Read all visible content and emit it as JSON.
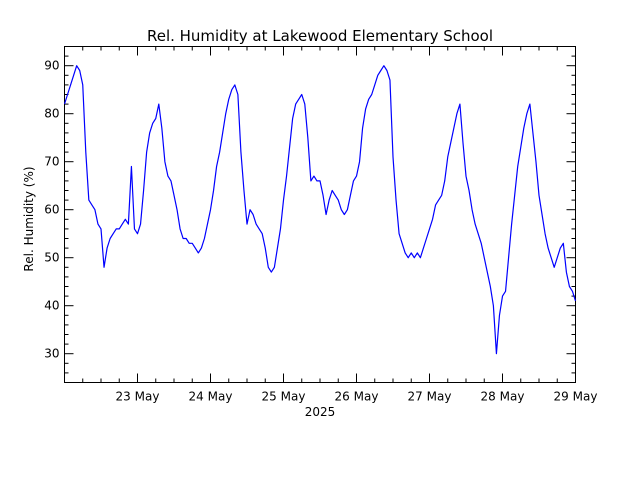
{
  "chart_data": {
    "type": "line",
    "title": "Rel. Humidity at Lakewood Elementary School",
    "xlabel": "2025",
    "ylabel": "Rel. Humidity (%)",
    "grid": false,
    "legend": "none",
    "xlim": [
      "2025-05-22T00:00",
      "2025-05-29T00:00"
    ],
    "ylim": [
      24,
      94
    ],
    "x_ticks": [
      "2025-05-23",
      "2025-05-24",
      "2025-05-25",
      "2025-05-26",
      "2025-05-27",
      "2025-05-28",
      "2025-05-29"
    ],
    "x_tick_labels": [
      "23 May",
      "24 May",
      "25 May",
      "26 May",
      "27 May",
      "28 May",
      "29 May"
    ],
    "y_ticks": [
      30,
      40,
      50,
      60,
      70,
      80,
      90
    ],
    "series": [
      {
        "color": "#0000ff",
        "x": [
          "2025-05-22T00:00",
          "2025-05-22T01:00",
          "2025-05-22T02:00",
          "2025-05-22T03:00",
          "2025-05-22T04:00",
          "2025-05-22T05:00",
          "2025-05-22T06:00",
          "2025-05-22T07:00",
          "2025-05-22T08:00",
          "2025-05-22T09:00",
          "2025-05-22T10:00",
          "2025-05-22T11:00",
          "2025-05-22T12:00",
          "2025-05-22T13:00",
          "2025-05-22T14:00",
          "2025-05-22T15:00",
          "2025-05-22T16:00",
          "2025-05-22T17:00",
          "2025-05-22T18:00",
          "2025-05-22T19:00",
          "2025-05-22T20:00",
          "2025-05-22T21:00",
          "2025-05-22T22:00",
          "2025-05-22T23:00",
          "2025-05-23T00:00",
          "2025-05-23T01:00",
          "2025-05-23T02:00",
          "2025-05-23T03:00",
          "2025-05-23T04:00",
          "2025-05-23T05:00",
          "2025-05-23T06:00",
          "2025-05-23T07:00",
          "2025-05-23T08:00",
          "2025-05-23T09:00",
          "2025-05-23T10:00",
          "2025-05-23T11:00",
          "2025-05-23T12:00",
          "2025-05-23T13:00",
          "2025-05-23T14:00",
          "2025-05-23T15:00",
          "2025-05-23T16:00",
          "2025-05-23T17:00",
          "2025-05-23T18:00",
          "2025-05-23T19:00",
          "2025-05-23T20:00",
          "2025-05-23T21:00",
          "2025-05-23T22:00",
          "2025-05-23T23:00",
          "2025-05-24T00:00",
          "2025-05-24T01:00",
          "2025-05-24T02:00",
          "2025-05-24T03:00",
          "2025-05-24T04:00",
          "2025-05-24T05:00",
          "2025-05-24T06:00",
          "2025-05-24T07:00",
          "2025-05-24T08:00",
          "2025-05-24T09:00",
          "2025-05-24T10:00",
          "2025-05-24T11:00",
          "2025-05-24T12:00",
          "2025-05-24T13:00",
          "2025-05-24T14:00",
          "2025-05-24T15:00",
          "2025-05-24T16:00",
          "2025-05-24T17:00",
          "2025-05-24T18:00",
          "2025-05-24T19:00",
          "2025-05-24T20:00",
          "2025-05-24T21:00",
          "2025-05-24T22:00",
          "2025-05-24T23:00",
          "2025-05-25T00:00",
          "2025-05-25T01:00",
          "2025-05-25T02:00",
          "2025-05-25T03:00",
          "2025-05-25T04:00",
          "2025-05-25T05:00",
          "2025-05-25T06:00",
          "2025-05-25T07:00",
          "2025-05-25T08:00",
          "2025-05-25T09:00",
          "2025-05-25T10:00",
          "2025-05-25T11:00",
          "2025-05-25T12:00",
          "2025-05-25T13:00",
          "2025-05-25T14:00",
          "2025-05-25T15:00",
          "2025-05-25T16:00",
          "2025-05-25T17:00",
          "2025-05-25T18:00",
          "2025-05-25T19:00",
          "2025-05-25T20:00",
          "2025-05-25T21:00",
          "2025-05-25T22:00",
          "2025-05-25T23:00",
          "2025-05-26T00:00",
          "2025-05-26T01:00",
          "2025-05-26T02:00",
          "2025-05-26T03:00",
          "2025-05-26T04:00",
          "2025-05-26T05:00",
          "2025-05-26T06:00",
          "2025-05-26T07:00",
          "2025-05-26T08:00",
          "2025-05-26T09:00",
          "2025-05-26T10:00",
          "2025-05-26T11:00",
          "2025-05-26T12:00",
          "2025-05-26T13:00",
          "2025-05-26T14:00",
          "2025-05-26T15:00",
          "2025-05-26T16:00",
          "2025-05-26T17:00",
          "2025-05-26T18:00",
          "2025-05-26T19:00",
          "2025-05-26T20:00",
          "2025-05-26T21:00",
          "2025-05-26T22:00",
          "2025-05-26T23:00",
          "2025-05-27T00:00",
          "2025-05-27T01:00",
          "2025-05-27T02:00",
          "2025-05-27T03:00",
          "2025-05-27T04:00",
          "2025-05-27T05:00",
          "2025-05-27T06:00",
          "2025-05-27T07:00",
          "2025-05-27T08:00",
          "2025-05-27T09:00",
          "2025-05-27T10:00",
          "2025-05-27T11:00",
          "2025-05-27T12:00",
          "2025-05-27T13:00",
          "2025-05-27T14:00",
          "2025-05-27T15:00",
          "2025-05-27T16:00",
          "2025-05-27T17:00",
          "2025-05-27T18:00",
          "2025-05-27T19:00",
          "2025-05-27T20:00",
          "2025-05-27T21:00",
          "2025-05-27T22:00",
          "2025-05-27T23:00",
          "2025-05-28T00:00",
          "2025-05-28T01:00",
          "2025-05-28T02:00",
          "2025-05-28T03:00",
          "2025-05-28T04:00",
          "2025-05-28T05:00",
          "2025-05-28T06:00",
          "2025-05-28T07:00",
          "2025-05-28T08:00",
          "2025-05-28T09:00",
          "2025-05-28T10:00",
          "2025-05-28T11:00",
          "2025-05-28T12:00",
          "2025-05-28T13:00",
          "2025-05-28T14:00",
          "2025-05-28T15:00",
          "2025-05-28T16:00",
          "2025-05-28T17:00",
          "2025-05-28T18:00",
          "2025-05-28T19:00",
          "2025-05-28T20:00",
          "2025-05-28T21:00",
          "2025-05-28T22:00",
          "2025-05-28T23:00",
          "2025-05-29T00:00"
        ],
        "y": [
          82,
          84,
          86,
          88,
          90,
          89,
          86,
          72,
          62,
          61,
          60,
          57,
          56,
          48,
          52,
          54,
          55,
          56,
          56,
          57,
          58,
          57,
          69,
          56,
          55,
          57,
          64,
          72,
          76,
          78,
          79,
          82,
          77,
          70,
          67,
          66,
          63,
          60,
          56,
          54,
          54,
          53,
          53,
          52,
          51,
          52,
          54,
          57,
          60,
          64,
          69,
          72,
          76,
          80,
          83,
          85,
          86,
          84,
          72,
          64,
          57,
          60,
          59,
          57,
          56,
          55,
          52,
          48,
          47,
          48,
          52,
          56,
          62,
          67,
          73,
          79,
          82,
          83,
          84,
          82,
          75,
          66,
          67,
          66,
          66,
          63,
          59,
          62,
          64,
          63,
          62,
          60,
          59,
          60,
          63,
          66,
          67,
          70,
          77,
          81,
          83,
          84,
          86,
          88,
          89,
          90,
          89,
          87,
          71,
          62,
          55,
          53,
          51,
          50,
          51,
          50,
          51,
          50,
          52,
          54,
          56,
          58,
          61,
          62,
          63,
          66,
          71,
          74,
          77,
          80,
          82,
          74,
          67,
          64,
          60,
          57,
          55,
          53,
          50,
          47,
          44,
          40,
          30,
          38,
          42,
          43,
          50,
          57,
          63,
          69,
          73,
          77,
          80,
          82,
          76,
          70,
          63,
          59,
          55,
          52,
          50,
          48,
          50,
          52,
          53,
          47,
          44,
          43,
          41
        ]
      }
    ]
  }
}
